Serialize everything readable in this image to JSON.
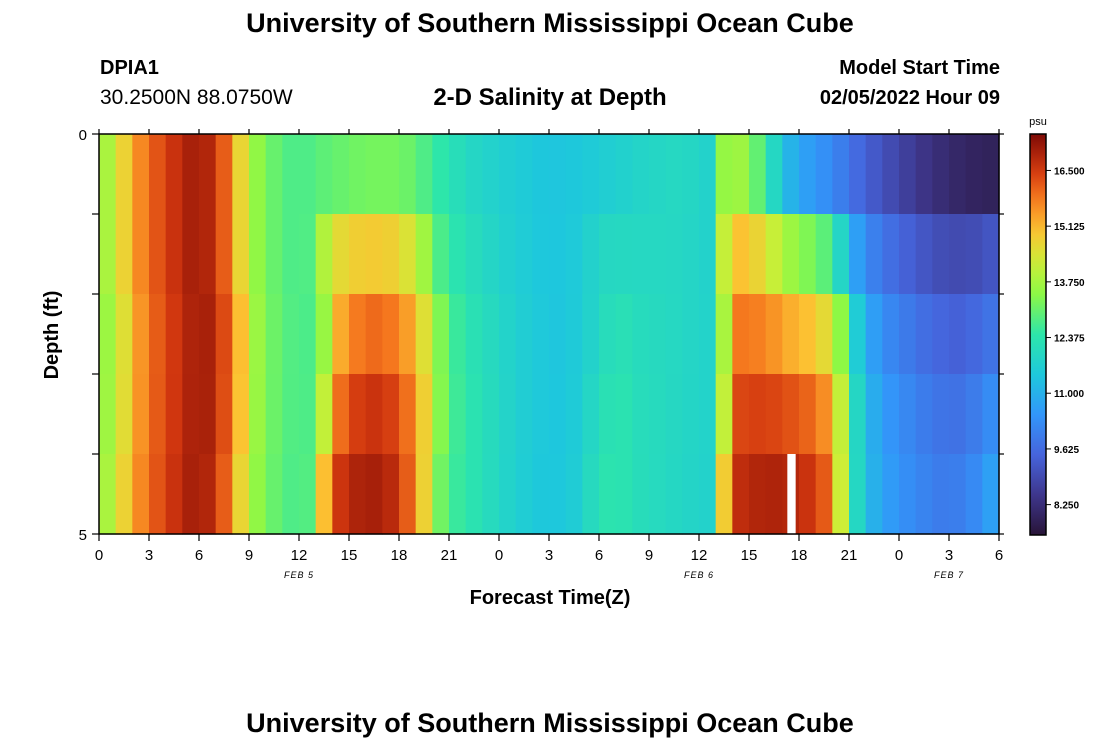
{
  "header": {
    "title": "University of Southern Mississippi Ocean Cube",
    "station": "DPIA1",
    "coords": "30.2500N  88.0750W",
    "subtitle": "2-D Salinity at Depth",
    "start_label": "Model Start Time",
    "start_value": "02/05/2022 Hour 09"
  },
  "footer": {
    "title": "University of Southern Mississippi Ocean Cube"
  },
  "chart_data": {
    "type": "heatmap",
    "xlabel": "Forecast Time(Z)",
    "ylabel": "Depth (ft)",
    "x_ticks": [
      "0",
      "3",
      "6",
      "9",
      "12",
      "15",
      "18",
      "21",
      "0",
      "3",
      "6",
      "9",
      "12",
      "15",
      "18",
      "21",
      "0",
      "3",
      "6"
    ],
    "x_range_hours": [
      0,
      54
    ],
    "date_labels": [
      {
        "label": "FEB 5",
        "hour": 12
      },
      {
        "label": "FEB 6",
        "hour": 36
      },
      {
        "label": "FEB 7",
        "hour": 51
      }
    ],
    "y_ticks": [
      "0",
      "5"
    ],
    "y_range": [
      0,
      5
    ],
    "depth_rows": 5,
    "colorbar": {
      "unit": "psu",
      "ticks": [
        "16.500",
        "15.125",
        "13.750",
        "12.375",
        "11.000",
        "9.625",
        "8.250"
      ],
      "tick_values": [
        16.5,
        15.125,
        13.75,
        12.375,
        11.0,
        9.625,
        8.25
      ],
      "range": [
        7.5,
        17.4
      ]
    },
    "salinity_profiles": {
      "surface": [
        [
          0,
          13.4
        ],
        [
          1,
          14.2
        ],
        [
          2,
          15.3
        ],
        [
          3,
          16.0
        ],
        [
          4,
          16.4
        ],
        [
          5,
          16.8
        ],
        [
          6,
          17.1
        ],
        [
          7,
          16.6
        ],
        [
          8,
          15.6
        ],
        [
          9,
          13.8
        ],
        [
          10,
          13.2
        ],
        [
          11,
          12.9
        ],
        [
          12,
          12.7
        ],
        [
          13,
          12.9
        ],
        [
          14,
          13.0
        ],
        [
          16,
          13.2
        ],
        [
          18,
          13.2
        ],
        [
          19,
          13.0
        ],
        [
          20,
          12.6
        ],
        [
          21,
          12.3
        ],
        [
          22,
          12.0
        ],
        [
          24,
          11.7
        ],
        [
          27,
          11.4
        ],
        [
          29,
          11.5
        ],
        [
          31,
          11.7
        ],
        [
          33,
          11.9
        ],
        [
          35,
          12.0
        ],
        [
          36.5,
          11.8
        ],
        [
          37,
          13.2
        ],
        [
          38,
          13.9
        ],
        [
          39,
          13.4
        ],
        [
          40,
          12.6
        ],
        [
          41,
          11.3
        ],
        [
          42,
          10.8
        ],
        [
          44,
          10.2
        ],
        [
          46,
          9.4
        ],
        [
          48,
          8.8
        ],
        [
          50,
          8.3
        ],
        [
          52,
          8.0
        ],
        [
          54,
          7.9
        ]
      ],
      "deep": [
        [
          0,
          13.4
        ],
        [
          1,
          14.2
        ],
        [
          2,
          15.3
        ],
        [
          3,
          16.0
        ],
        [
          4,
          16.4
        ],
        [
          5,
          16.8
        ],
        [
          6,
          17.1
        ],
        [
          7,
          16.6
        ],
        [
          8,
          15.6
        ],
        [
          9,
          13.8
        ],
        [
          10,
          13.2
        ],
        [
          11,
          12.9
        ],
        [
          12,
          12.7
        ],
        [
          13,
          13.0
        ],
        [
          13.5,
          15.2
        ],
        [
          14.5,
          16.8
        ],
        [
          16,
          17.3
        ],
        [
          17.5,
          17.0
        ],
        [
          18.5,
          16.3
        ],
        [
          19.5,
          14.9
        ],
        [
          20.5,
          13.2
        ],
        [
          21.5,
          12.6
        ],
        [
          23,
          12.2
        ],
        [
          25,
          11.7
        ],
        [
          27,
          11.4
        ],
        [
          28.5,
          11.6
        ],
        [
          30,
          12.3
        ],
        [
          31,
          12.5
        ],
        [
          32,
          12.2
        ],
        [
          34,
          12.0
        ],
        [
          35,
          11.9
        ],
        [
          36.5,
          11.8
        ],
        [
          37.3,
          14.2
        ],
        [
          38,
          16.8
        ],
        [
          40,
          17.2
        ],
        [
          42,
          17.2
        ],
        [
          43.5,
          16.5
        ],
        [
          44.5,
          14.5
        ],
        [
          45,
          12.8
        ],
        [
          46,
          11.4
        ],
        [
          47,
          10.8
        ],
        [
          49,
          10.3
        ],
        [
          51,
          10.0
        ],
        [
          53,
          10.5
        ],
        [
          54,
          11.2
        ]
      ],
      "row_blend": [
        0.0,
        0.42,
        0.68,
        0.84,
        0.94
      ],
      "deep_shift_hours": [
        0,
        0,
        0.3,
        0.2,
        0
      ],
      "missing_cells": [
        {
          "row": 4,
          "hour_start": 41.3,
          "hour_end": 41.8
        }
      ]
    }
  }
}
